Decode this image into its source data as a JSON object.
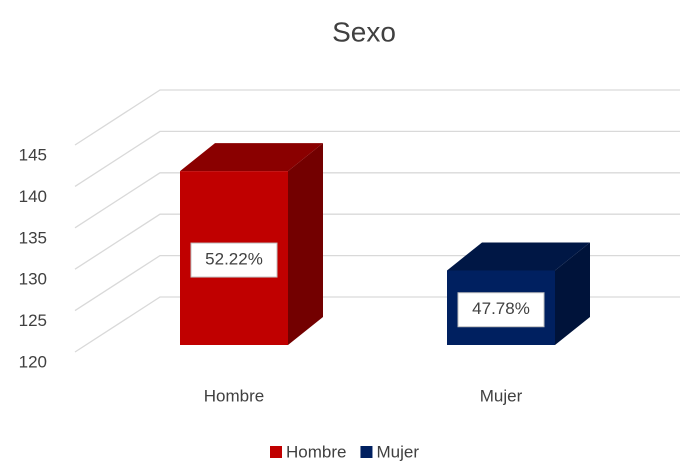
{
  "chart_data": {
    "type": "bar3d",
    "title": "Sexo",
    "categories": [
      "Hombre",
      "Mujer"
    ],
    "series": [
      {
        "name": "Hombre",
        "values": [
          141,
          null
        ],
        "color": "#c00000"
      },
      {
        "name": "Mujer",
        "values": [
          null,
          129
        ],
        "color": "#002060"
      }
    ],
    "data_labels": [
      {
        "value": 52.22,
        "label": "52.22%"
      },
      {
        "value": 47.78,
        "label": "47.78%"
      }
    ],
    "ylim": [
      120,
      145
    ],
    "yticks": [
      120,
      125,
      130,
      135,
      140,
      145
    ],
    "grid": true,
    "legend": "bottom"
  }
}
